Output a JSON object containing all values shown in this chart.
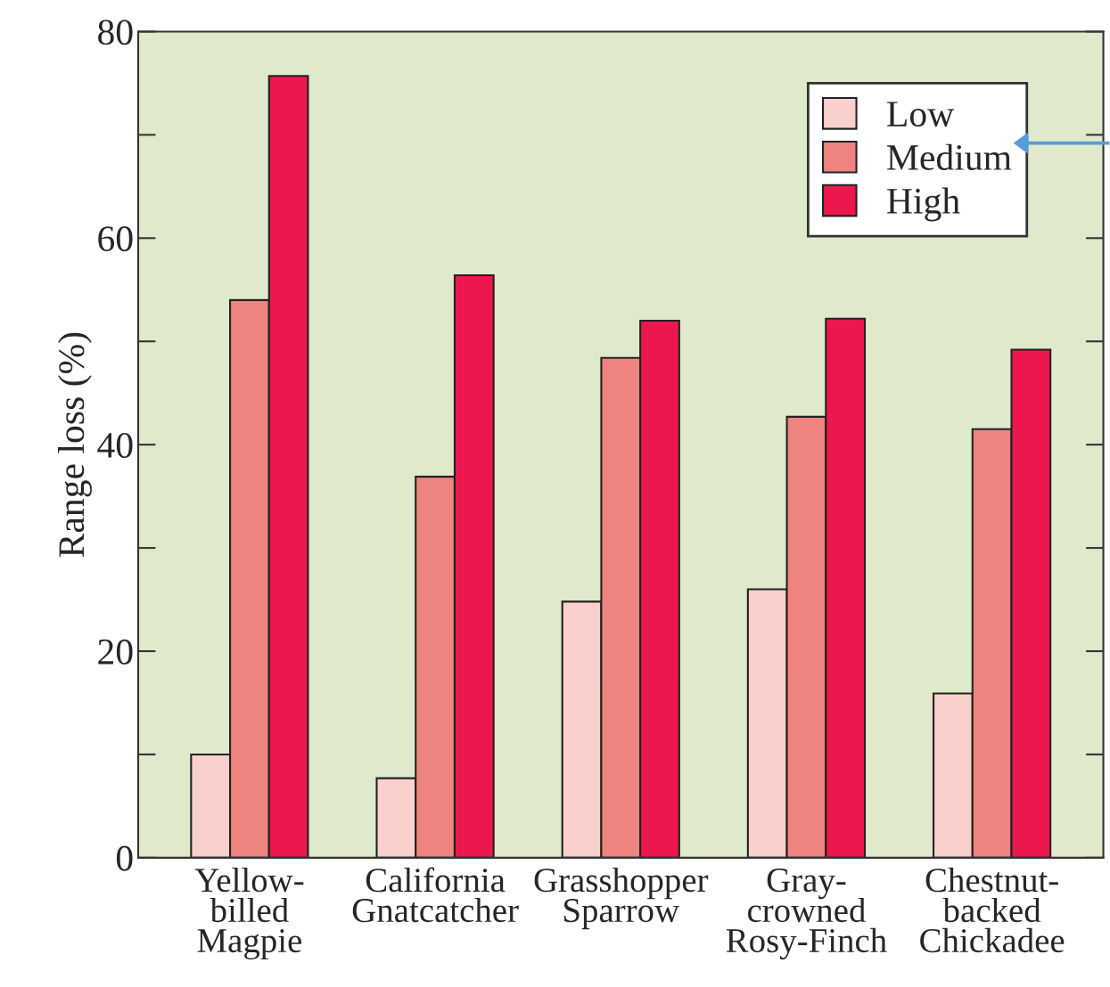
{
  "chart_data": {
    "type": "bar",
    "ylabel": "Range loss (%)",
    "categories": [
      "Yellow-\nbilled\nMagpie",
      "California\nGnatcatcher",
      "Grasshopper\nSparrow",
      "Gray-\ncrowned\nRosy-Finch",
      "Chestnut-\nbacked\nChickadee"
    ],
    "series": [
      {
        "name": "Low",
        "color": "#f9d0cc",
        "values": [
          10,
          7.7,
          24.8,
          26.0,
          15.9
        ]
      },
      {
        "name": "Medium",
        "color": "#ef8380",
        "values": [
          54.0,
          36.9,
          48.4,
          42.7,
          41.5
        ]
      },
      {
        "name": "High",
        "color": "#ec174d",
        "values": [
          75.7,
          56.4,
          52.0,
          52.2,
          49.2
        ]
      }
    ],
    "ylim": [
      0,
      80
    ],
    "yticks": [
      0,
      20,
      40,
      60,
      80
    ],
    "grid": false,
    "legend": "top right"
  }
}
